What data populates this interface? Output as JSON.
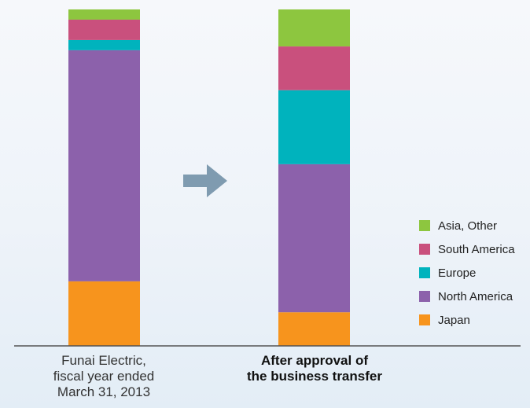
{
  "chart_data": {
    "type": "bar",
    "stacked": true,
    "categories": [
      "Funai Electric,\nfiscal year ended\nMarch 31, 2013",
      "After approval of\nthe business transfer"
    ],
    "series": [
      {
        "name": "Japan",
        "color": "#f7941d",
        "values": [
          19,
          10
        ]
      },
      {
        "name": "North America",
        "color": "#8c61ab",
        "values": [
          68,
          44
        ]
      },
      {
        "name": "Europe",
        "color": "#00b3bd",
        "values": [
          3,
          22
        ]
      },
      {
        "name": "South America",
        "color": "#c9507d",
        "values": [
          6,
          13
        ]
      },
      {
        "name": "Asia, Other",
        "color": "#8dc63f",
        "values": [
          3,
          11
        ]
      }
    ],
    "legend": {
      "position": "right",
      "items": [
        "Asia, Other",
        "South America",
        "Europe",
        "North America",
        "Japan"
      ]
    },
    "arrow_color": "#7f9bb0",
    "axis_color": "#555555",
    "category_label_styles": [
      "normal",
      "bold"
    ]
  }
}
